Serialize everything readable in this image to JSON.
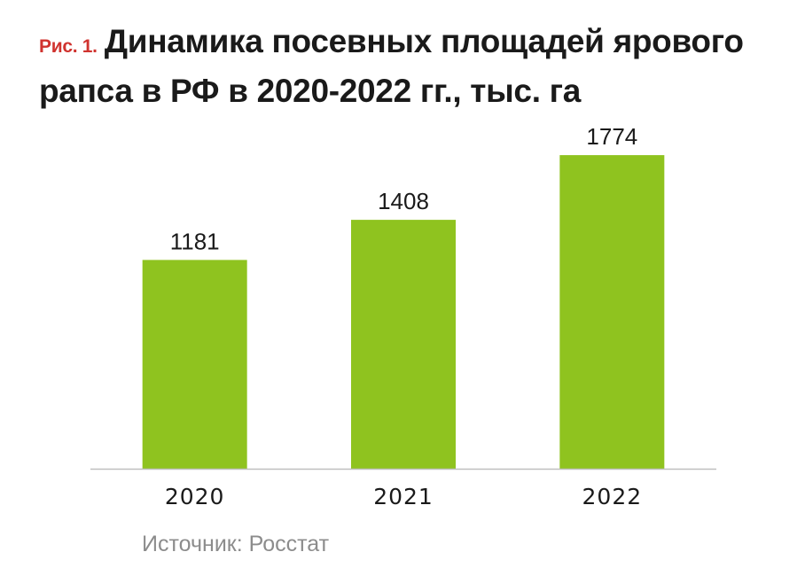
{
  "title": {
    "figure_label": "Рис. 1.",
    "text": "Динамика посевных площадей ярового рапса в РФ в 2020-2022 гг., тыс. га"
  },
  "source": "Источник: Росстат",
  "colors": {
    "bar": "#8fc31f",
    "axis": "#bfbfbf",
    "text": "#1a1a1a"
  },
  "chart_data": {
    "type": "bar",
    "categories": [
      "2020",
      "2021",
      "2022"
    ],
    "values": [
      1181,
      1408,
      1774
    ],
    "ylim": [
      0,
      2000
    ],
    "grid": false,
    "legend": "none"
  }
}
